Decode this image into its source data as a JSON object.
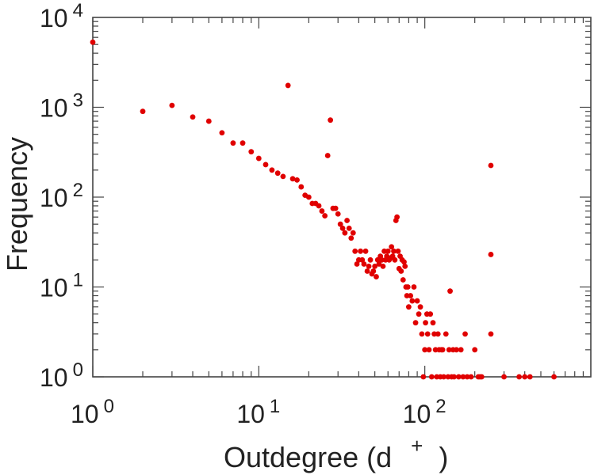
{
  "chart_data": {
    "type": "scatter",
    "title": "",
    "xlabel": "Outdegree (d",
    "xlabel_superscript": "+",
    "xlabel_close": ")",
    "ylabel": "Frequency",
    "xscale": "log",
    "yscale": "log",
    "xlim": [
      1,
      900
    ],
    "ylim": [
      1,
      10000
    ],
    "grid": false,
    "legend": "none",
    "marker_color": "#e00000",
    "x_tick_labels": [
      {
        "base": "10",
        "exp": "0",
        "value": 1
      },
      {
        "base": "10",
        "exp": "1",
        "value": 10
      },
      {
        "base": "10",
        "exp": "2",
        "value": 100
      }
    ],
    "y_tick_labels": [
      {
        "base": "10",
        "exp": "0",
        "value": 1
      },
      {
        "base": "10",
        "exp": "1",
        "value": 10
      },
      {
        "base": "10",
        "exp": "2",
        "value": 100
      },
      {
        "base": "10",
        "exp": "3",
        "value": 1000
      },
      {
        "base": "10",
        "exp": "4",
        "value": 10000
      }
    ],
    "points": [
      [
        1,
        5300
      ],
      [
        2,
        900
      ],
      [
        3,
        1050
      ],
      [
        4,
        780
      ],
      [
        5,
        700
      ],
      [
        6,
        520
      ],
      [
        7,
        400
      ],
      [
        8,
        400
      ],
      [
        9,
        320
      ],
      [
        10,
        270
      ],
      [
        11,
        230
      ],
      [
        12,
        200
      ],
      [
        13,
        185
      ],
      [
        14,
        170
      ],
      [
        15,
        1750
      ],
      [
        16,
        160
      ],
      [
        17,
        155
      ],
      [
        18,
        130
      ],
      [
        19,
        105
      ],
      [
        20,
        100
      ],
      [
        21,
        85
      ],
      [
        22,
        85
      ],
      [
        23,
        80
      ],
      [
        24,
        70
      ],
      [
        25,
        62
      ],
      [
        26,
        290
      ],
      [
        27,
        720
      ],
      [
        28,
        75
      ],
      [
        29,
        75
      ],
      [
        30,
        65
      ],
      [
        31,
        50
      ],
      [
        32,
        45
      ],
      [
        33,
        40
      ],
      [
        34,
        55
      ],
      [
        35,
        45
      ],
      [
        36,
        35
      ],
      [
        37,
        40
      ],
      [
        38,
        25
      ],
      [
        39,
        18
      ],
      [
        40,
        20
      ],
      [
        41,
        25
      ],
      [
        42,
        20
      ],
      [
        43,
        18
      ],
      [
        44,
        25
      ],
      [
        45,
        15
      ],
      [
        46,
        17
      ],
      [
        47,
        20
      ],
      [
        48,
        14
      ],
      [
        49,
        15
      ],
      [
        50,
        17
      ],
      [
        51,
        13
      ],
      [
        52,
        20
      ],
      [
        53,
        18
      ],
      [
        54,
        22
      ],
      [
        55,
        20
      ],
      [
        56,
        17
      ],
      [
        57,
        25
      ],
      [
        58,
        20
      ],
      [
        59,
        22
      ],
      [
        60,
        25
      ],
      [
        61,
        20
      ],
      [
        62,
        21
      ],
      [
        63,
        28
      ],
      [
        64,
        22
      ],
      [
        65,
        25
      ],
      [
        66,
        20
      ],
      [
        67,
        55
      ],
      [
        68,
        60
      ],
      [
        69,
        25
      ],
      [
        70,
        16
      ],
      [
        71,
        22
      ],
      [
        72,
        15
      ],
      [
        73,
        20
      ],
      [
        74,
        12
      ],
      [
        75,
        19
      ],
      [
        76,
        17
      ],
      [
        77,
        10
      ],
      [
        78,
        8
      ],
      [
        79,
        10
      ],
      [
        80,
        6
      ],
      [
        82,
        8
      ],
      [
        84,
        7
      ],
      [
        86,
        10
      ],
      [
        88,
        4
      ],
      [
        90,
        7
      ],
      [
        92,
        5
      ],
      [
        94,
        6
      ],
      [
        96,
        3
      ],
      [
        98,
        1
      ],
      [
        100,
        2
      ],
      [
        101,
        4
      ],
      [
        103,
        5
      ],
      [
        104,
        3
      ],
      [
        106,
        2
      ],
      [
        108,
        5
      ],
      [
        110,
        1
      ],
      [
        112,
        4
      ],
      [
        114,
        3
      ],
      [
        116,
        2
      ],
      [
        118,
        1
      ],
      [
        120,
        3
      ],
      [
        122,
        2
      ],
      [
        124,
        1
      ],
      [
        126,
        2
      ],
      [
        128,
        2
      ],
      [
        130,
        1
      ],
      [
        134,
        3
      ],
      [
        138,
        1
      ],
      [
        140,
        2
      ],
      [
        142,
        9
      ],
      [
        145,
        1
      ],
      [
        148,
        2
      ],
      [
        150,
        1
      ],
      [
        155,
        2
      ],
      [
        160,
        1
      ],
      [
        165,
        2
      ],
      [
        170,
        1
      ],
      [
        175,
        3
      ],
      [
        180,
        1
      ],
      [
        190,
        1
      ],
      [
        200,
        2
      ],
      [
        210,
        1
      ],
      [
        215,
        1
      ],
      [
        220,
        1
      ],
      [
        250,
        225
      ],
      [
        250,
        23
      ],
      [
        250,
        3
      ],
      [
        300,
        1
      ],
      [
        370,
        1
      ],
      [
        400,
        1
      ],
      [
        430,
        1
      ],
      [
        600,
        1
      ]
    ]
  }
}
